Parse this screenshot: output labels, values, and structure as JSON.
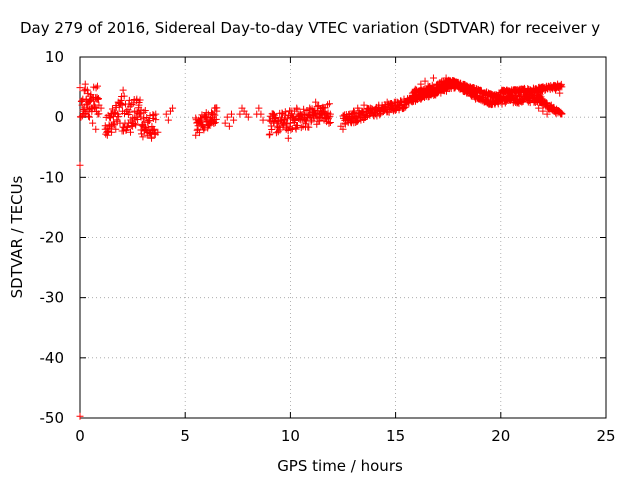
{
  "chart_data": {
    "type": "scatter",
    "title": "Day 279 of 2016, Sidereal Day-to-day VTEC variation (SDTVAR) for receiver y",
    "xlabel": "GPS time / hours",
    "ylabel": "SDTVAR / TECUs",
    "xlim": [
      0,
      25
    ],
    "ylim": [
      -50,
      10
    ],
    "xticks": [
      0,
      5,
      10,
      15,
      20,
      25
    ],
    "yticks": [
      -50,
      -40,
      -30,
      -20,
      -10,
      0,
      10
    ],
    "grid": true,
    "marker": "+",
    "series_color": "#ff0000",
    "series": [
      {
        "name": "SDTVAR",
        "points": [
          [
            0.0,
            -8.0
          ],
          [
            0.0,
            -49.7
          ],
          [
            0.1,
            2.0
          ],
          [
            0.15,
            1.0
          ],
          [
            0.2,
            0.5
          ],
          [
            0.25,
            5.5
          ],
          [
            0.3,
            3.0
          ],
          [
            0.35,
            4.5
          ],
          [
            0.4,
            2.5
          ],
          [
            0.45,
            0.0
          ],
          [
            0.5,
            3.5
          ],
          [
            0.55,
            1.5
          ],
          [
            0.6,
            -1.0
          ],
          [
            0.65,
            5.0
          ],
          [
            0.7,
            2.0
          ],
          [
            0.75,
            -2.0
          ],
          [
            0.8,
            3.0
          ],
          [
            0.85,
            0.5
          ],
          [
            0.9,
            2.0
          ],
          [
            1.0,
            1.5
          ],
          [
            1.2,
            -2.0
          ],
          [
            1.3,
            -3.0
          ],
          [
            1.4,
            -1.5
          ],
          [
            1.5,
            -2.5
          ],
          [
            1.6,
            -1.0
          ],
          [
            1.7,
            -2.0
          ],
          [
            1.8,
            0.5
          ],
          [
            1.9,
            -1.0
          ],
          [
            2.0,
            2.0
          ],
          [
            2.05,
            4.5
          ],
          [
            2.1,
            3.5
          ],
          [
            2.2,
            1.0
          ],
          [
            2.3,
            -1.0
          ],
          [
            2.4,
            -2.5
          ],
          [
            2.5,
            -1.5
          ],
          [
            2.6,
            1.0
          ],
          [
            2.7,
            3.0
          ],
          [
            2.8,
            2.0
          ],
          [
            2.9,
            0.0
          ],
          [
            3.0,
            -1.5
          ],
          [
            3.1,
            -2.0
          ],
          [
            3.2,
            -3.0
          ],
          [
            3.3,
            -2.5
          ],
          [
            3.4,
            -3.5
          ],
          [
            3.5,
            -2.0
          ],
          [
            3.6,
            0.5
          ],
          [
            3.7,
            -2.5
          ],
          [
            4.1,
            0.5
          ],
          [
            4.2,
            -0.5
          ],
          [
            4.3,
            1.0
          ],
          [
            4.4,
            1.5
          ],
          [
            5.5,
            -3.0
          ],
          [
            5.6,
            -2.0
          ],
          [
            5.7,
            -1.0
          ],
          [
            5.8,
            -0.5
          ],
          [
            5.9,
            0.0
          ],
          [
            6.0,
            -0.8
          ],
          [
            6.1,
            0.5
          ],
          [
            6.2,
            -1.0
          ],
          [
            6.3,
            0.0
          ],
          [
            6.4,
            1.5
          ],
          [
            6.5,
            1.0
          ],
          [
            6.9,
            -1.0
          ],
          [
            7.0,
            0.0
          ],
          [
            7.1,
            -1.5
          ],
          [
            7.2,
            0.5
          ],
          [
            7.3,
            -0.5
          ],
          [
            7.6,
            0.5
          ],
          [
            7.7,
            1.5
          ],
          [
            7.8,
            1.0
          ],
          [
            7.9,
            0.5
          ],
          [
            8.0,
            0.0
          ],
          [
            8.4,
            0.5
          ],
          [
            8.5,
            1.5
          ],
          [
            8.6,
            0.5
          ],
          [
            8.7,
            -0.5
          ],
          [
            9.0,
            -0.5
          ],
          [
            9.2,
            -1.0
          ],
          [
            9.4,
            -1.5
          ],
          [
            9.6,
            -1.0
          ],
          [
            9.8,
            -2.0
          ],
          [
            9.9,
            -3.5
          ],
          [
            10.0,
            -1.0
          ],
          [
            10.1,
            0.0
          ],
          [
            10.2,
            1.0
          ],
          [
            10.3,
            1.5
          ],
          [
            10.4,
            0.5
          ],
          [
            10.5,
            -0.5
          ],
          [
            10.6,
            -1.5
          ],
          [
            10.7,
            -0.5
          ],
          [
            10.8,
            0.0
          ],
          [
            10.9,
            0.5
          ],
          [
            11.0,
            -0.5
          ],
          [
            11.1,
            1.0
          ],
          [
            11.2,
            2.5
          ],
          [
            11.3,
            1.0
          ],
          [
            11.4,
            0.5
          ],
          [
            11.5,
            1.5
          ],
          [
            11.6,
            -0.5
          ],
          [
            11.7,
            0.5
          ],
          [
            11.8,
            0.0
          ],
          [
            11.9,
            0.5
          ],
          [
            12.4,
            -1.5
          ],
          [
            12.5,
            -2.0
          ],
          [
            12.6,
            -1.0
          ],
          [
            12.7,
            0.0
          ],
          [
            12.8,
            0.5
          ],
          [
            12.9,
            0.0
          ],
          [
            13.0,
            1.0
          ],
          [
            13.2,
            1.5
          ],
          [
            13.4,
            1.0
          ],
          [
            13.5,
            2.0
          ],
          [
            13.6,
            1.0
          ],
          [
            13.8,
            1.5
          ],
          [
            14.0,
            1.0
          ],
          [
            14.2,
            2.0
          ],
          [
            14.4,
            1.5
          ],
          [
            14.6,
            2.5
          ],
          [
            14.8,
            1.5
          ],
          [
            15.0,
            2.5
          ],
          [
            15.2,
            2.0
          ],
          [
            15.4,
            3.0
          ],
          [
            15.6,
            2.5
          ],
          [
            15.8,
            4.0
          ],
          [
            16.0,
            4.5
          ],
          [
            16.2,
            5.5
          ],
          [
            16.4,
            6.0
          ],
          [
            16.6,
            5.0
          ],
          [
            16.8,
            6.5
          ],
          [
            17.0,
            5.5
          ],
          [
            17.2,
            6.0
          ],
          [
            17.4,
            6.5
          ],
          [
            17.6,
            5.5
          ],
          [
            17.8,
            6.0
          ],
          [
            18.0,
            5.0
          ],
          [
            18.2,
            4.5
          ],
          [
            18.4,
            4.0
          ],
          [
            18.6,
            3.5
          ],
          [
            18.8,
            3.0
          ],
          [
            19.0,
            3.5
          ],
          [
            19.2,
            4.0
          ],
          [
            19.4,
            3.0
          ],
          [
            19.6,
            2.5
          ],
          [
            19.8,
            3.5
          ],
          [
            20.0,
            4.0
          ],
          [
            20.2,
            3.0
          ],
          [
            20.4,
            3.5
          ],
          [
            20.6,
            4.5
          ],
          [
            20.8,
            3.0
          ],
          [
            21.0,
            2.5
          ],
          [
            21.2,
            3.5
          ],
          [
            21.4,
            4.0
          ],
          [
            21.6,
            3.0
          ],
          [
            21.8,
            1.5
          ],
          [
            22.0,
            1.0
          ],
          [
            22.2,
            0.5
          ],
          [
            22.4,
            2.0
          ],
          [
            22.6,
            4.5
          ],
          [
            22.7,
            5.5
          ],
          [
            22.8,
            4.0
          ],
          [
            22.9,
            0.5
          ]
        ],
        "bands": [
          {
            "start": 15.5,
            "end": 18.0,
            "from": [
              2.0,
              3.0
            ],
            "to": [
              5.0,
              6.0
            ]
          },
          {
            "start": 15.8,
            "end": 17.8,
            "from": [
              3.0,
              4.5
            ],
            "to": [
              5.5,
              6.5
            ]
          },
          {
            "start": 17.8,
            "end": 20.0,
            "from": [
              5.0,
              6.0
            ],
            "to": [
              3.0,
              3.5
            ]
          },
          {
            "start": 17.5,
            "end": 19.5,
            "from": [
              5.5,
              6.5
            ],
            "to": [
              2.0,
              2.5
            ]
          },
          {
            "start": 19.5,
            "end": 22.0,
            "from": [
              2.0,
              3.5
            ],
            "to": [
              2.5,
              4.0
            ]
          },
          {
            "start": 20.0,
            "end": 22.0,
            "from": [
              4.0,
              4.5
            ],
            "to": [
              4.0,
              5.0
            ]
          },
          {
            "start": 21.8,
            "end": 22.9,
            "from": [
              4.0,
              5.0
            ],
            "to": [
              5.0,
              5.5
            ]
          },
          {
            "start": 21.7,
            "end": 22.9,
            "from": [
              2.5,
              3.5
            ],
            "to": [
              0.0,
              0.8
            ]
          },
          {
            "start": 0.0,
            "end": 0.9,
            "from": [
              0.0,
              5.5
            ],
            "to": [
              0.0,
              5.5
            ]
          },
          {
            "start": 1.2,
            "end": 2.0,
            "from": [
              -3.0,
              0.0
            ],
            "to": [
              0.0,
              4.0
            ]
          },
          {
            "start": 2.0,
            "end": 2.9,
            "from": [
              -2.5,
              4.0
            ],
            "to": [
              -1.0,
              3.0
            ]
          },
          {
            "start": 2.9,
            "end": 3.6,
            "from": [
              -3.5,
              1.5
            ],
            "to": [
              -3.5,
              0.5
            ]
          },
          {
            "start": 5.5,
            "end": 6.5,
            "from": [
              -3.0,
              0.0
            ],
            "to": [
              -1.0,
              2.0
            ]
          },
          {
            "start": 9.0,
            "end": 11.9,
            "from": [
              -3.0,
              0.5
            ],
            "to": [
              -1.0,
              2.5
            ]
          },
          {
            "start": 12.5,
            "end": 15.5,
            "from": [
              -1.5,
              0.5
            ],
            "to": [
              1.5,
              3.0
            ]
          }
        ]
      }
    ]
  }
}
